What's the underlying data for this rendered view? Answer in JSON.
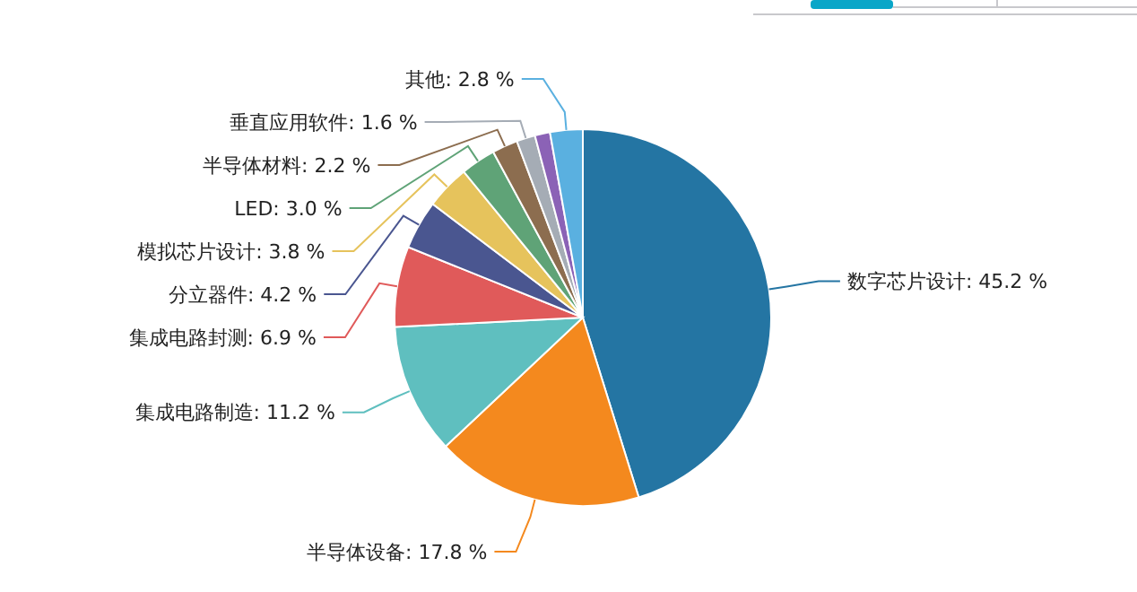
{
  "chart_data": {
    "type": "pie",
    "categories": [
      "数字芯片设计",
      "半导体设备",
      "集成电路制造",
      "集成电路封测",
      "分立器件",
      "模拟芯片设计",
      "LED",
      "半导体材料",
      "垂直应用软件",
      null,
      "其他"
    ],
    "values": [
      45.2,
      17.8,
      11.2,
      6.9,
      4.2,
      3.8,
      3.0,
      2.2,
      1.6,
      1.3,
      2.8
    ],
    "value_labels": [
      "45.2 %",
      "17.8 %",
      "11.2 %",
      "6.9 %",
      "4.2 %",
      "3.8 %",
      "3.0 %",
      "2.2 %",
      "1.6 %",
      null,
      "2.8 %"
    ],
    "colors": [
      "#2475a3",
      "#f4891e",
      "#5fbfbf",
      "#e05a5a",
      "#4a5690",
      "#e6c35c",
      "#5fa377",
      "#8c6d4f",
      "#a5acb5",
      "#8b62b6",
      "#5ab0e0"
    ]
  }
}
